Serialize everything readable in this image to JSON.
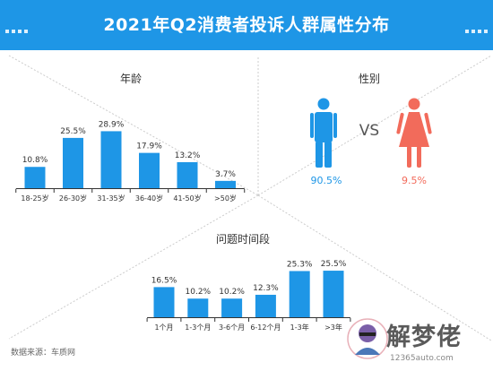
{
  "title": "2021年Q2消费者投诉人群属性分布",
  "source": "数据来源：车质网",
  "watermark": {
    "title": "解梦佬",
    "url": "12365auto.com"
  },
  "colors": {
    "header": "#1e96e6",
    "bar": "#1e96e6",
    "male": "#1e96e6",
    "female": "#f26b5b",
    "divider": "#cccccc"
  },
  "gender": {
    "label": "性别",
    "vs": "VS",
    "male_value": "90.5%",
    "female_value": "9.5%",
    "male_icon": "male-person-icon",
    "female_icon": "female-person-icon"
  },
  "chart_data": [
    {
      "type": "bar",
      "title": "年龄",
      "categories": [
        "18-25岁",
        "26-30岁",
        "31-35岁",
        "36-40岁",
        "41-50岁",
        ">50岁"
      ],
      "values": [
        10.8,
        25.5,
        28.9,
        17.9,
        13.2,
        3.7
      ],
      "labels": [
        "10.8%",
        "25.5%",
        "28.9%",
        "17.9%",
        "13.2%",
        "3.7%"
      ],
      "ylim": [
        0,
        30
      ],
      "grid": false,
      "legend": "none"
    },
    {
      "type": "bar",
      "title": "问题时间段",
      "categories": [
        "1个月",
        "1-3个月",
        "3-6个月",
        "6-12个月",
        "1-3年",
        ">3年"
      ],
      "values": [
        16.5,
        10.2,
        10.2,
        12.3,
        25.3,
        25.5
      ],
      "labels": [
        "16.5%",
        "10.2%",
        "10.2%",
        "12.3%",
        "25.3%",
        "25.5%"
      ],
      "ylim": [
        0,
        27
      ],
      "grid": false,
      "legend": "none"
    }
  ]
}
